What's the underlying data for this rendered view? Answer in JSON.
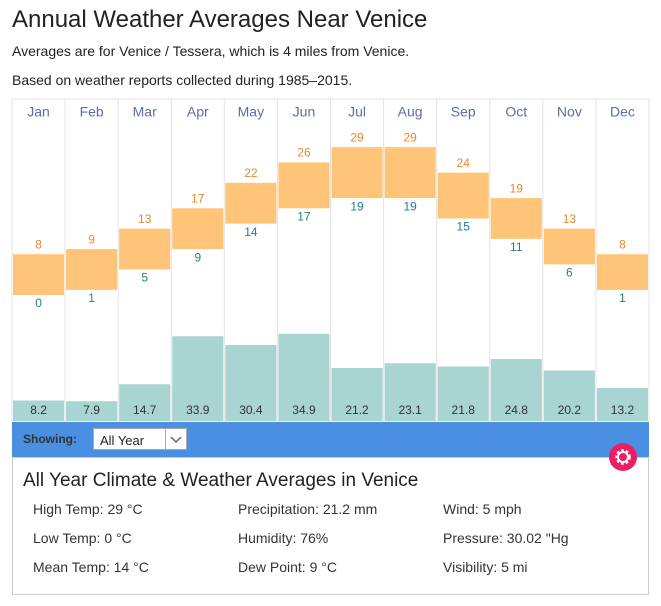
{
  "title": "Annual Weather Averages Near Venice",
  "notes": [
    "Averages are for Venice / Tessera, which is 4 miles from Venice.",
    "Based on weather reports collected during 1985–2015."
  ],
  "chart_data": {
    "type": "range-bar",
    "categories": [
      "Jan",
      "Feb",
      "Mar",
      "Apr",
      "May",
      "Jun",
      "Jul",
      "Aug",
      "Sep",
      "Oct",
      "Nov",
      "Dec"
    ],
    "high": [
      8,
      9,
      13,
      17,
      22,
      26,
      29,
      29,
      24,
      19,
      13,
      8
    ],
    "low": [
      0,
      1,
      5,
      9,
      14,
      17,
      19,
      19,
      15,
      11,
      6,
      1
    ],
    "precipitation": [
      8.2,
      7.9,
      14.7,
      33.9,
      30.4,
      34.9,
      21.2,
      23.1,
      21.8,
      24.8,
      20.2,
      13.2
    ],
    "bar_color": "#ffc478",
    "high_color": "#e8892c",
    "low_color": "#1f7f8c",
    "precip_color": "#a8d4d2"
  },
  "controls": {
    "showing_label": "Showing:",
    "selected": "All Year"
  },
  "panel": {
    "heading": "All Year Climate & Weather Averages in Venice",
    "stats": [
      [
        "High Temp: 29 °C",
        "Low Temp: 0 °C",
        "Mean Temp: 14 °C"
      ],
      [
        "Precipitation: 21.2 mm",
        "Humidity: 76%",
        "Dew Point: 9 °C"
      ],
      [
        "Wind: 5 mph",
        "Pressure: 30.02 \"Hg",
        "Visibility: 5 mi"
      ]
    ]
  }
}
